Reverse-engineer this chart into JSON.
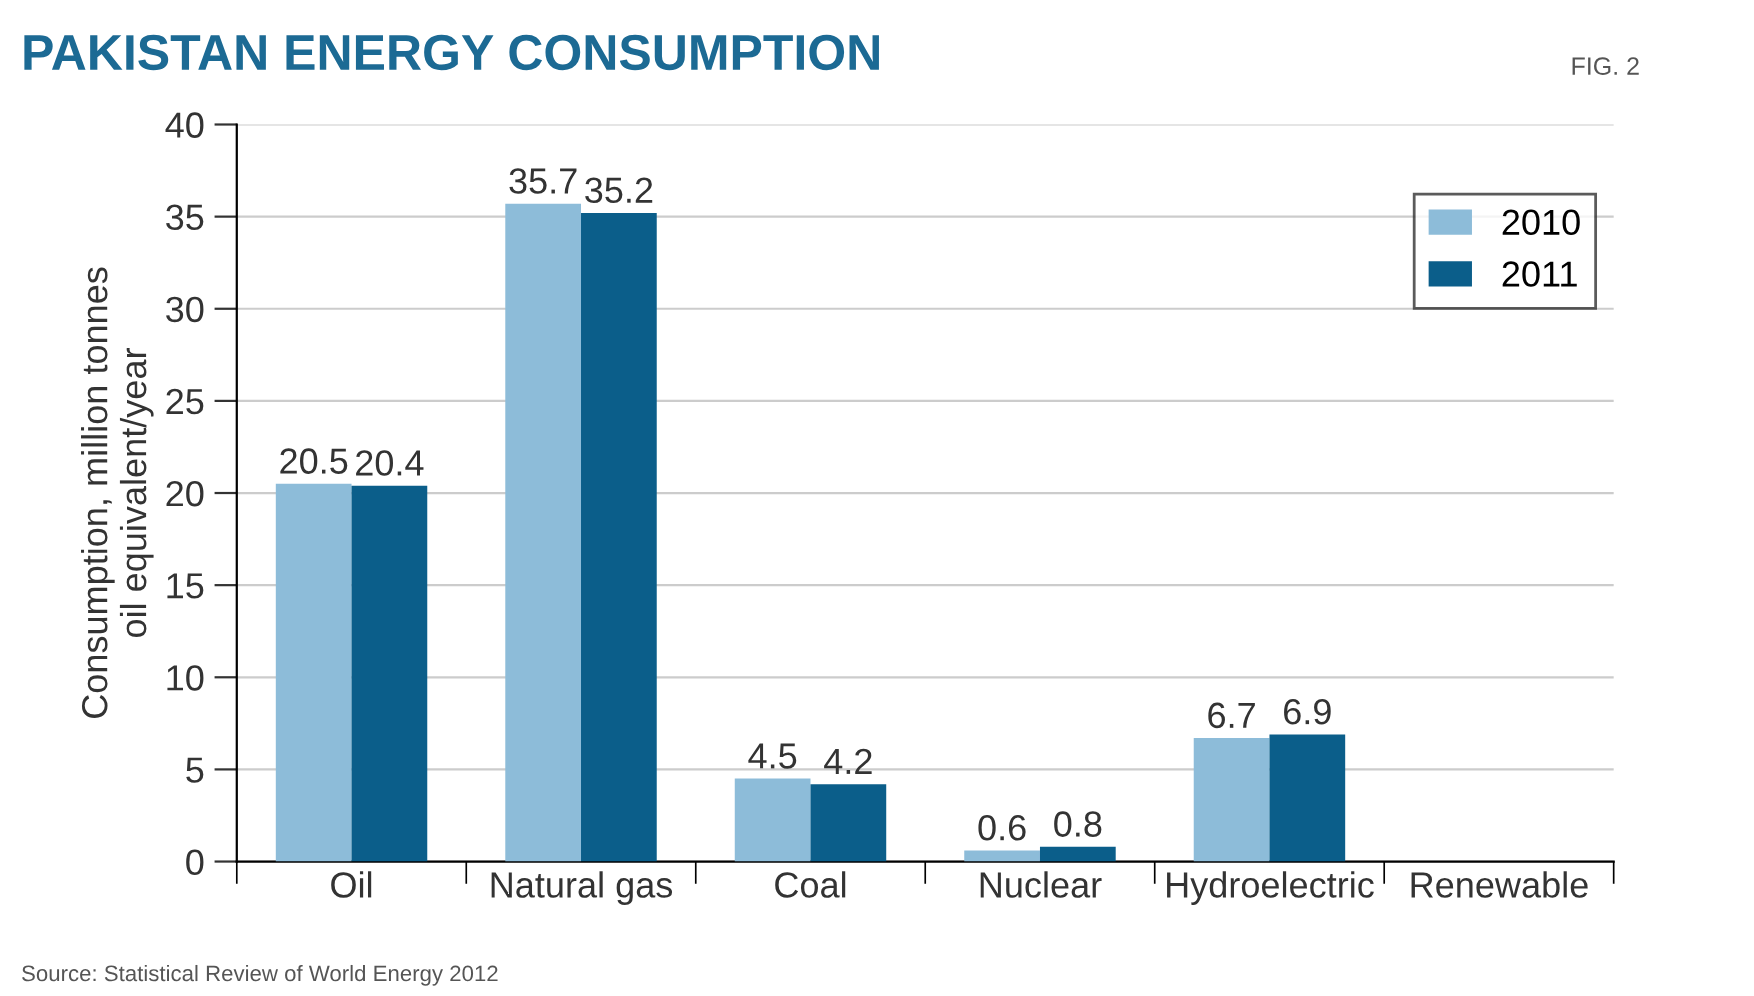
{
  "chart_data": {
    "type": "bar",
    "title": "PAKISTAN ENERGY CONSUMPTION",
    "subtitle": "FIG. 2",
    "ylabel": "Consumption, million tonnes\noil equivalent/year",
    "categories": [
      "Oil",
      "Natural gas",
      "Coal",
      "Nuclear",
      "Hydroelectric",
      "Renewable"
    ],
    "series": [
      {
        "name": "2010",
        "color": "#8dbcd9",
        "values": [
          20.5,
          35.7,
          4.5,
          0.6,
          6.7,
          null
        ]
      },
      {
        "name": "2011",
        "color": "#0b5e8a",
        "values": [
          20.4,
          35.2,
          4.2,
          0.8,
          6.9,
          null
        ]
      }
    ],
    "ylim": [
      0,
      40
    ],
    "yticks": [
      0,
      5,
      10,
      15,
      20,
      25,
      30,
      35,
      40
    ],
    "grid": "y",
    "legend": "top right",
    "data_labels": true,
    "annotations": [
      "Source: Statistical Review of World Energy 2012"
    ]
  }
}
